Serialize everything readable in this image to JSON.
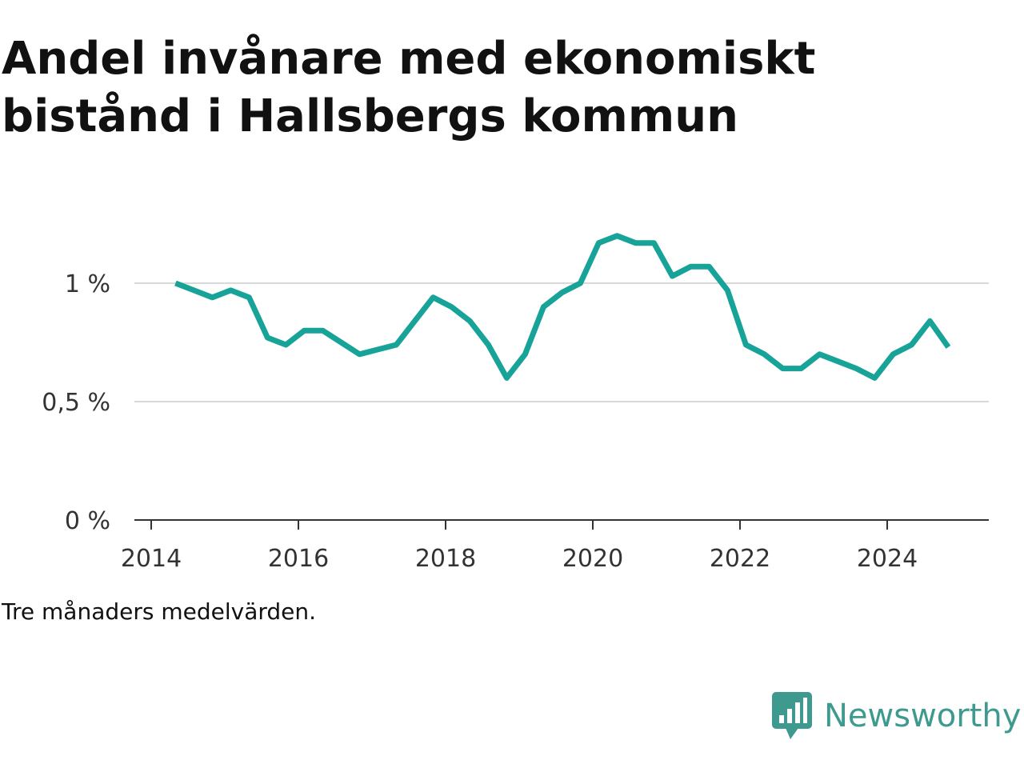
{
  "title": "Andel invånare med ekonomiskt bistånd i Hallsbergs kommun",
  "note": "Tre månaders medelvärden.",
  "brand": {
    "name": "Newsworthy",
    "color": "#3e9a8f",
    "icon": "newsworthy-logo-icon"
  },
  "chart_data": {
    "type": "line",
    "title": "Andel invånare med ekonomiskt bistånd i Hallsbergs kommun",
    "xlabel": "",
    "ylabel": "",
    "xlim": [
      2013.97,
      2025.3
    ],
    "ylim": [
      0,
      1.1
    ],
    "x_ticks": [
      {
        "value": 2014,
        "label": "2014"
      },
      {
        "value": 2016,
        "label": "2016"
      },
      {
        "value": 2018,
        "label": "2018"
      },
      {
        "value": 2020,
        "label": "2020"
      },
      {
        "value": 2022,
        "label": "2022"
      },
      {
        "value": 2024,
        "label": "2024"
      }
    ],
    "y_ticks": [
      {
        "value": 0,
        "label": "0 %"
      },
      {
        "value": 0.5,
        "label": "0,5 %"
      },
      {
        "value": 1,
        "label": "1 %"
      }
    ],
    "grid": true,
    "line_color": "#17a398",
    "series": [
      {
        "x": [
          2014.33,
          2014.58,
          2014.83,
          2015.08,
          2015.33,
          2015.58,
          2015.83,
          2016.08,
          2016.33,
          2016.58,
          2016.83,
          2017.08,
          2017.33,
          2017.58,
          2017.83,
          2018.08,
          2018.33,
          2018.58,
          2018.83,
          2019.08,
          2019.33,
          2019.58,
          2019.83,
          2020.08,
          2020.33,
          2020.58,
          2020.83,
          2021.08,
          2021.33,
          2021.58,
          2021.83,
          2022.08,
          2022.33,
          2022.58,
          2022.83,
          2023.08,
          2023.33,
          2023.58,
          2023.83,
          2024.08,
          2024.33,
          2024.58,
          2024.83
        ],
        "values": [
          1.0,
          0.97,
          0.94,
          0.97,
          0.94,
          0.77,
          0.74,
          0.8,
          0.8,
          0.75,
          0.7,
          0.72,
          0.74,
          0.84,
          0.94,
          0.9,
          0.84,
          0.74,
          0.6,
          0.7,
          0.9,
          0.96,
          1.0,
          1.17,
          1.2,
          1.17,
          1.17,
          1.03,
          1.07,
          1.07,
          0.97,
          0.74,
          0.7,
          0.64,
          0.64,
          0.7,
          0.67,
          0.64,
          0.6,
          0.7,
          0.74,
          0.84,
          0.73
        ]
      }
    ]
  }
}
